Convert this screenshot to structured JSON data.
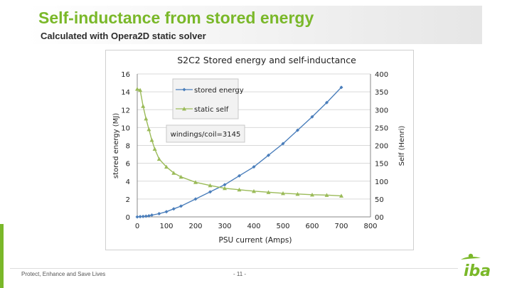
{
  "slide": {
    "title": "Self-inductance from stored energy",
    "subtitle": "Calculated with Opera2D static solver",
    "footer": "Protect, Enhance and Save Lives",
    "page_number": "- 11 -",
    "logo_text": "iba",
    "accent_color": "#7ab829"
  },
  "chart_data": {
    "type": "line",
    "title": "S2C2 Stored energy and self-inductance",
    "xlabel": "PSU current (Amps)",
    "ylabel": "stored energy (MJ)",
    "y2label": "Self (Henri)",
    "xlim": [
      0,
      800
    ],
    "ylim": [
      0,
      16
    ],
    "y2lim": [
      0,
      400
    ],
    "x_ticks": [
      "0",
      "100",
      "200",
      "300",
      "400",
      "500",
      "600",
      "700",
      "800"
    ],
    "y_ticks": [
      "0",
      "2",
      "4",
      "6",
      "8",
      "10",
      "12",
      "14",
      "16"
    ],
    "y2_ticks": [
      "00",
      "50",
      "100",
      "150",
      "200",
      "250",
      "300",
      "350",
      "400"
    ],
    "grid": true,
    "legend_position": "top-left",
    "annotation": "windings/coil=3145",
    "series": [
      {
        "name": "stored energy",
        "axis": "left",
        "color": "#4a7ebb",
        "marker": "diamond",
        "x": [
          0,
          10,
          20,
          30,
          40,
          50,
          75,
          100,
          125,
          150,
          200,
          250,
          300,
          350,
          400,
          450,
          500,
          550,
          600,
          650,
          700
        ],
        "y": [
          0.0,
          0.03,
          0.05,
          0.08,
          0.12,
          0.2,
          0.36,
          0.58,
          0.9,
          1.2,
          2.0,
          2.8,
          3.6,
          4.6,
          5.6,
          6.9,
          8.2,
          9.7,
          11.2,
          12.8,
          14.5
        ]
      },
      {
        "name": "static self",
        "axis": "right",
        "color": "#9bbb59",
        "marker": "triangle",
        "x": [
          0,
          10,
          20,
          30,
          40,
          50,
          60,
          75,
          100,
          125,
          150,
          200,
          250,
          300,
          350,
          400,
          450,
          500,
          550,
          600,
          650,
          700
        ],
        "y": [
          358,
          355,
          310,
          275,
          245,
          215,
          190,
          162,
          140,
          123,
          112,
          97,
          88,
          80,
          76,
          72,
          69,
          66,
          64,
          62,
          61,
          59
        ]
      }
    ]
  }
}
